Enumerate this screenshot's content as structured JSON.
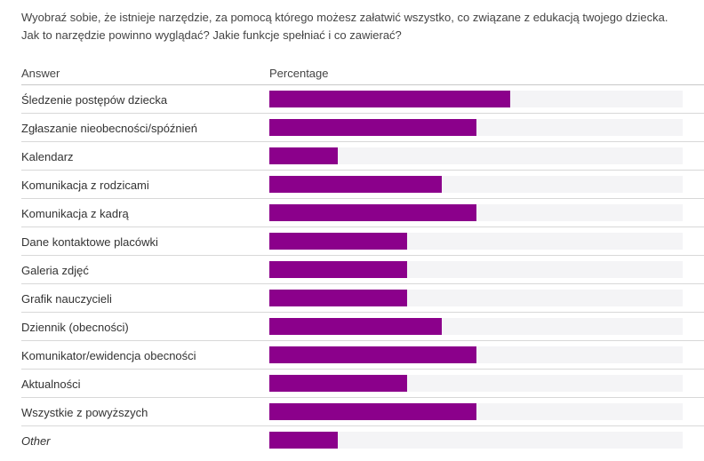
{
  "question": "Wyobraź sobie, że istnieje narzędzie, za pomocą którego możesz załatwić wszystko, co związane z edukacją twojego dziecka. Jak to narzędzie powinno wyglądać? Jakie funkcje spełniać i co zawierać?",
  "table": {
    "answer_header": "Answer",
    "percentage_header": "Percentage"
  },
  "colors": {
    "bar": "#8b008b",
    "track": "#f4f4f6"
  },
  "chart_data": {
    "type": "bar",
    "orientation": "horizontal",
    "xlabel": "Percentage",
    "ylabel": "Answer",
    "xlim": [
      0,
      30
    ],
    "categories": [
      "Śledzenie postępów dziecka",
      "Zgłaszanie nieobecności/spóźnień",
      "Kalendarz",
      "Komunikacja z rodzicami",
      "Komunikacja z kadrą",
      "Dane kontaktowe placówki",
      "Galeria zdjęć",
      "Grafik nauczycieli",
      "Dziennik (obecności)",
      "Komunikator/ewidencja obecności",
      "Aktualności",
      "Wszystkie z powyższych",
      "Other"
    ],
    "values": [
      17.5,
      15,
      5,
      12.5,
      15,
      10,
      10,
      10,
      12.5,
      15,
      10,
      15,
      5
    ]
  }
}
